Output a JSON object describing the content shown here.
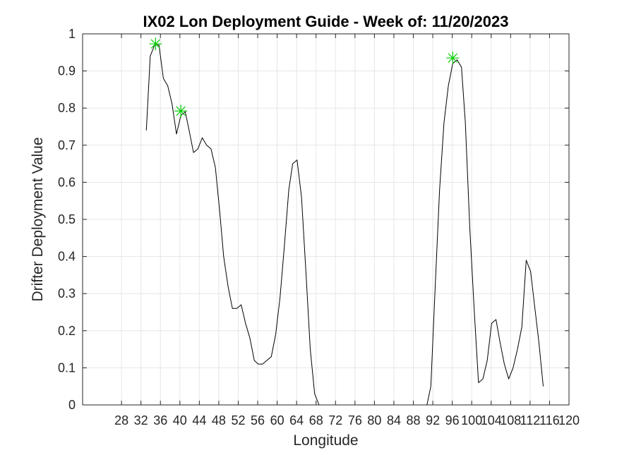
{
  "chart_data": {
    "type": "line",
    "title": "IX02 Lon Deployment Guide - Week of: 11/20/2023",
    "xlabel": "Longitude",
    "ylabel": "Drifter Deployment Value",
    "xlim": [
      20,
      120
    ],
    "ylim": [
      0,
      1
    ],
    "xticks": [
      28,
      32,
      36,
      40,
      44,
      48,
      52,
      56,
      60,
      64,
      68,
      72,
      76,
      80,
      84,
      88,
      92,
      96,
      100,
      104,
      108,
      112,
      116,
      120
    ],
    "xtick_labels": [
      "28",
      "32",
      "36",
      "40",
      "44",
      "48",
      "52",
      "56",
      "60",
      "64",
      "68",
      "72",
      "76",
      "80",
      "84",
      "88",
      "92",
      "96",
      "100",
      "104",
      "108",
      "112",
      "116",
      "120"
    ],
    "yticks": [
      0,
      0.1,
      0.2,
      0.3,
      0.4,
      0.5,
      0.6,
      0.7,
      0.8,
      0.9,
      1
    ],
    "ytick_labels": [
      "0",
      "0.1",
      "0.2",
      "0.3",
      "0.4",
      "0.5",
      "0.6",
      "0.7",
      "0.8",
      "0.9",
      "1"
    ],
    "grid": true,
    "line_color": "#000000",
    "marker_color": "#00cc00",
    "series": [
      {
        "x": [
          33.1,
          33.9,
          34.8,
          35.7,
          36.6,
          37.5,
          38.4,
          39.3,
          40.2,
          41.1,
          41.9,
          42.8,
          43.7,
          44.6,
          45.5,
          46.4,
          47.3,
          48.2,
          49.0,
          49.9,
          50.8,
          51.7,
          52.6,
          53.5,
          54.4,
          55.3,
          56.1,
          57.0,
          57.9,
          58.8,
          59.7,
          60.6,
          61.5,
          62.4,
          63.2,
          64.1,
          65.0,
          65.9,
          66.8,
          67.7,
          68.6,
          69.5,
          70.3,
          71.2,
          72.1,
          73.0,
          73.9,
          74.8,
          75.7,
          76.6,
          77.4,
          78.3,
          79.2,
          80.1,
          81.0,
          81.9,
          82.8,
          83.7,
          84.5,
          85.4,
          86.3,
          87.2,
          88.1,
          89.0,
          89.9,
          90.8,
          91.6,
          92.5,
          93.4,
          94.3,
          95.2,
          96.1,
          97.0,
          97.9,
          98.7,
          99.6,
          100.5,
          101.4,
          102.3,
          103.2,
          104.1,
          105.0,
          105.8,
          106.7,
          107.6,
          108.5,
          109.4,
          110.3,
          111.2,
          112.1,
          112.9,
          113.8,
          114.7
        ],
        "y": [
          0.74,
          0.94,
          0.97,
          0.97,
          0.88,
          0.86,
          0.81,
          0.73,
          0.78,
          0.79,
          0.74,
          0.68,
          0.69,
          0.72,
          0.7,
          0.69,
          0.64,
          0.52,
          0.4,
          0.32,
          0.26,
          0.26,
          0.27,
          0.22,
          0.18,
          0.12,
          0.11,
          0.11,
          0.12,
          0.13,
          0.19,
          0.29,
          0.43,
          0.58,
          0.65,
          0.66,
          0.56,
          0.36,
          0.15,
          0.03,
          0.0,
          0.0,
          0.0,
          0.0,
          0.0,
          0.0,
          0.0,
          0.0,
          0.0,
          0.0,
          0.0,
          0.0,
          0.0,
          0.0,
          0.0,
          0.0,
          0.0,
          0.0,
          0.0,
          0.0,
          0.0,
          0.0,
          0.0,
          0.0,
          0.0,
          0.0,
          0.05,
          0.32,
          0.58,
          0.76,
          0.86,
          0.92,
          0.93,
          0.91,
          0.76,
          0.48,
          0.26,
          0.06,
          0.07,
          0.12,
          0.22,
          0.23,
          0.17,
          0.11,
          0.07,
          0.1,
          0.15,
          0.21,
          0.39,
          0.36,
          0.27,
          0.17,
          0.05
        ]
      }
    ],
    "peaks": [
      {
        "x": 35.0,
        "y": 0.973
      },
      {
        "x": 40.2,
        "y": 0.792
      },
      {
        "x": 96.1,
        "y": 0.935
      }
    ]
  }
}
